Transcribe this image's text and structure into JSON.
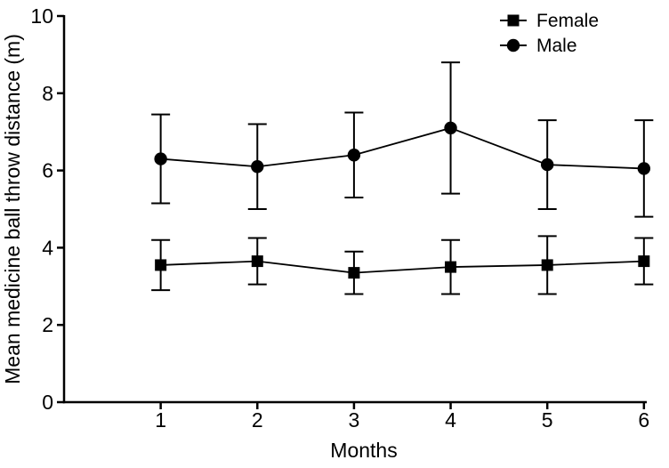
{
  "figure": {
    "background": "#ffffff",
    "ink_color": "#000000"
  },
  "chart_data": {
    "type": "line",
    "title": "",
    "xlabel": "Months",
    "ylabel": "Mean medicine ball throw distance (m)",
    "x": [
      1,
      2,
      3,
      4,
      5,
      6
    ],
    "x_tick_labels": [
      "1",
      "2",
      "3",
      "4",
      "5",
      "6"
    ],
    "y_ticks": [
      0,
      2,
      4,
      6,
      8,
      10
    ],
    "y_tick_labels": [
      "0",
      "2",
      "4",
      "6",
      "8",
      "10"
    ],
    "xlim": [
      0,
      6.02
    ],
    "ylim": [
      0,
      10
    ],
    "grid": false,
    "error_bars": true,
    "legend_position": "top-right",
    "series": [
      {
        "name": "Female",
        "marker": "square",
        "color": "#000000",
        "values": [
          3.55,
          3.65,
          3.35,
          3.5,
          3.55,
          3.65
        ],
        "errors": [
          0.65,
          0.6,
          0.55,
          0.7,
          0.75,
          0.6
        ]
      },
      {
        "name": "Male",
        "marker": "circle",
        "color": "#000000",
        "values": [
          6.3,
          6.1,
          6.4,
          7.1,
          6.15,
          6.05
        ],
        "errors": [
          1.15,
          1.1,
          1.1,
          1.7,
          1.15,
          1.25
        ]
      }
    ]
  }
}
